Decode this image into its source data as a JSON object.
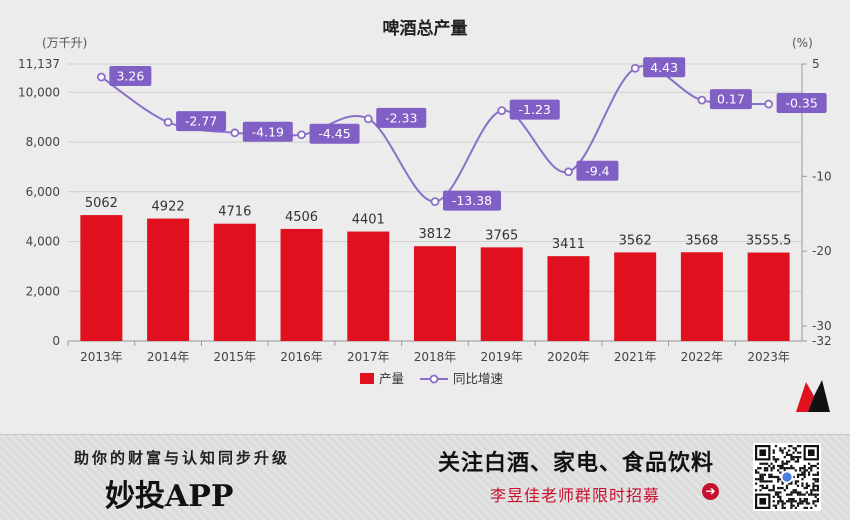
{
  "chart_data": {
    "type": "bar",
    "title": "啤酒总产量",
    "left_unit": "(万千升)",
    "right_unit": "(%)",
    "categories": [
      "2013年",
      "2014年",
      "2015年",
      "2016年",
      "2017年",
      "2018年",
      "2019年",
      "2020年",
      "2021年",
      "2022年",
      "2023年"
    ],
    "series": [
      {
        "name": "产量",
        "type": "bar",
        "axis": "left",
        "color": "#e0101e",
        "values": [
          5062,
          4922,
          4716,
          4506,
          4401,
          3812,
          3765,
          3411,
          3562,
          3568,
          3555.5
        ],
        "labels": [
          "5062",
          "4922",
          "4716",
          "4506",
          "4401",
          "3812",
          "3765",
          "3411",
          "3562",
          "3568",
          "3555.5"
        ]
      },
      {
        "name": "同比增速",
        "type": "line",
        "axis": "right",
        "color": "#8a6fc8",
        "values": [
          3.26,
          -2.77,
          -4.19,
          -4.45,
          -2.33,
          -13.38,
          -1.23,
          -9.4,
          4.43,
          0.17,
          -0.35
        ],
        "labels": [
          "3.26",
          "-2.77",
          "-4.19",
          "-4.45",
          "-2.33",
          "-13.38",
          "-1.23",
          "-9.4",
          "4.43",
          "0.17",
          "-0.35"
        ]
      }
    ],
    "ylim_left": [
      0,
      11137
    ],
    "ylim_right": [
      -32,
      5
    ],
    "left_ticks": [
      0,
      2000,
      4000,
      6000,
      8000,
      10000,
      11137
    ],
    "left_tick_labels": [
      "0",
      "2,000",
      "4,000",
      "6,000",
      "8,000",
      "10,000",
      "11,137"
    ],
    "right_ticks": [
      5,
      -10,
      -20,
      -30,
      -32
    ],
    "right_tick_labels": [
      "5",
      "-10",
      "-20",
      "-30",
      "-32"
    ],
    "grid": true,
    "legend_position": "bottom-center"
  },
  "footer": {
    "slogan": "助你的财富与认知同步升级",
    "app_name": "妙投APP",
    "headline": "关注白酒、家电、食品饮料",
    "subline": "李昱佳老师群限时招募",
    "arrow": "➔"
  },
  "icons": {
    "logo": "brand-m-logo",
    "qr": "qr-code",
    "arrow": "arrow-right-circle-icon"
  }
}
